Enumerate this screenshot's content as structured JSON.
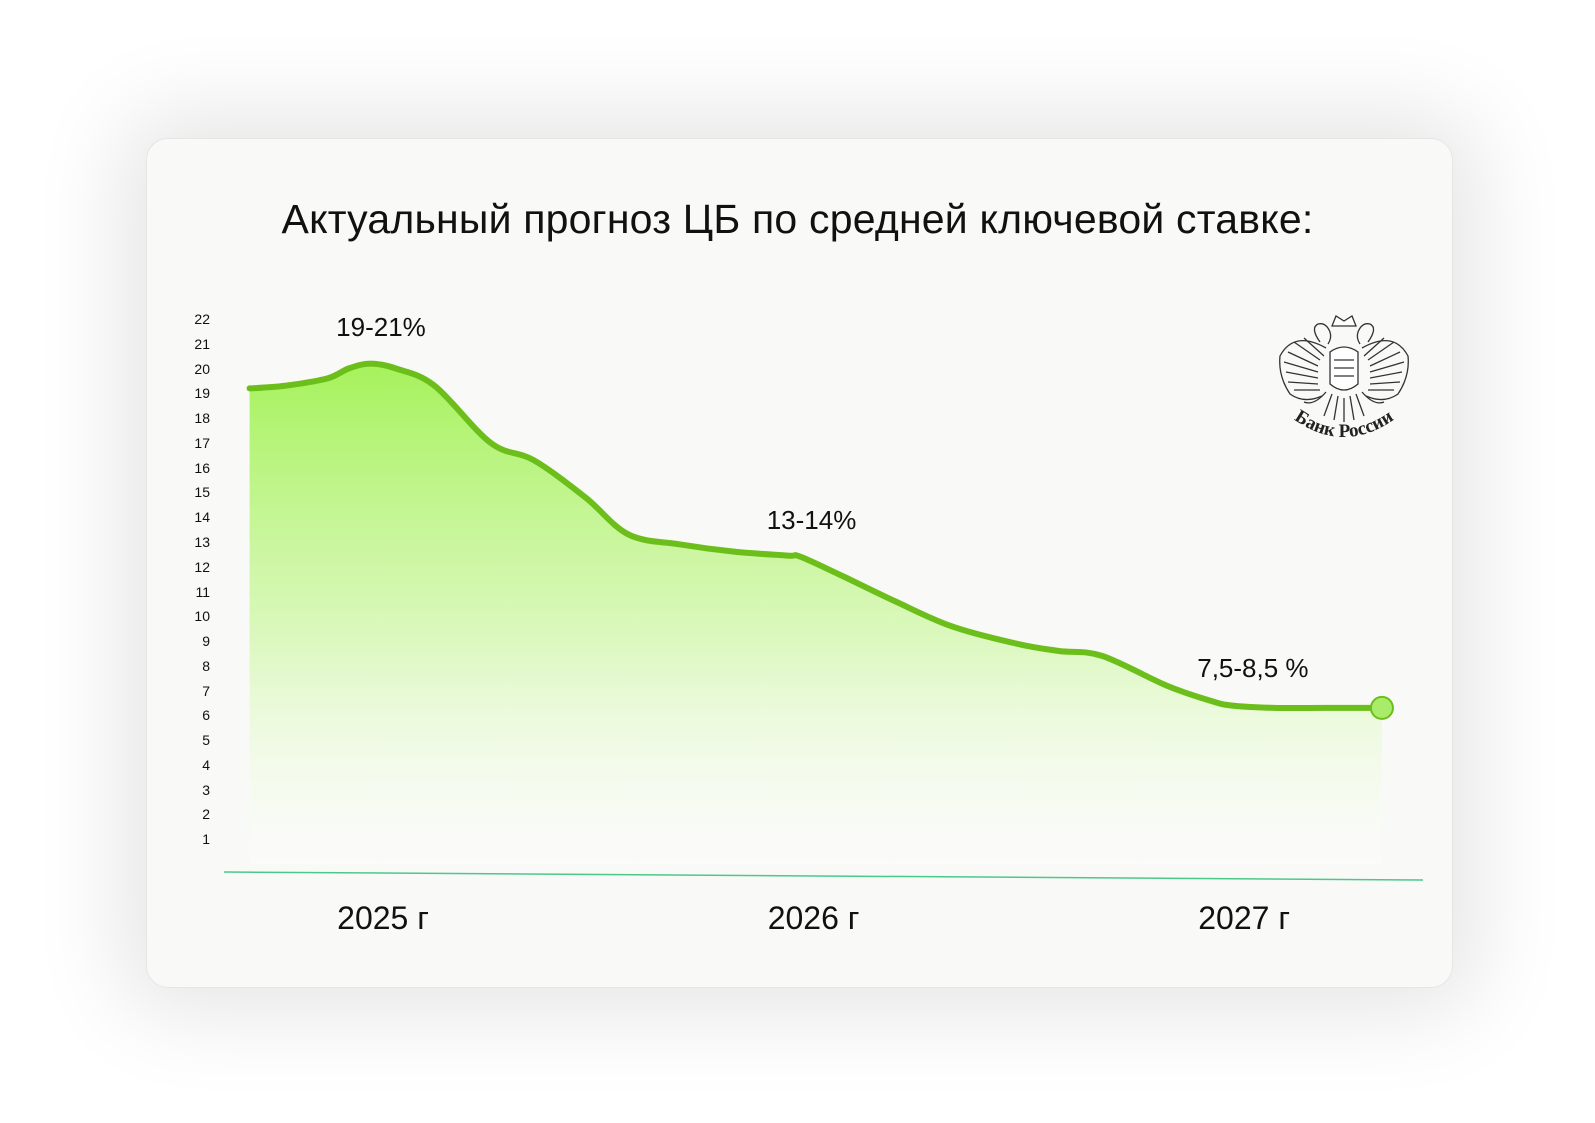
{
  "title": "Актуальный прогноз ЦБ по средней ключевой ставке:",
  "logo": {
    "text": "Банк России",
    "icon": "double-headed-eagle-emblem"
  },
  "colors": {
    "line": "#6cbf1a",
    "fill_top": "#a6f25c",
    "fill_bottom": "#ffffff",
    "axis": "#4cc98a",
    "marker": "#a8ec6a"
  },
  "chart_data": {
    "type": "area",
    "title": "Актуальный прогноз ЦБ по средней ключевой ставке:",
    "xlabel": "",
    "ylabel": "",
    "ylim": [
      0,
      22
    ],
    "yticks": [
      "22",
      "21",
      "20",
      "19",
      "18",
      "17",
      "16",
      "15",
      "14",
      "13",
      "12",
      "11",
      "10",
      "9",
      "8",
      "7",
      "6",
      "5",
      "4",
      "3",
      "2",
      "1"
    ],
    "xlim": [
      2024.7,
      2027.45
    ],
    "xticks": [
      {
        "x": 2025.0,
        "label": "2025 г"
      },
      {
        "x": 2026.0,
        "label": "2026 г"
      },
      {
        "x": 2027.0,
        "label": "2027 г"
      }
    ],
    "series": [
      {
        "values": [
          [
            2024.72,
            19.2
          ],
          [
            2024.8,
            19.3
          ],
          [
            2024.9,
            19.6
          ],
          [
            2024.95,
            20.0
          ],
          [
            2025.0,
            20.2
          ],
          [
            2025.06,
            20.0
          ],
          [
            2025.15,
            19.3
          ],
          [
            2025.28,
            17.0
          ],
          [
            2025.38,
            16.3
          ],
          [
            2025.5,
            14.8
          ],
          [
            2025.6,
            13.3
          ],
          [
            2025.72,
            12.9
          ],
          [
            2025.85,
            12.6
          ],
          [
            2025.97,
            12.45
          ],
          [
            2026.0,
            12.4
          ],
          [
            2026.1,
            11.6
          ],
          [
            2026.22,
            10.6
          ],
          [
            2026.35,
            9.6
          ],
          [
            2026.5,
            8.9
          ],
          [
            2026.6,
            8.6
          ],
          [
            2026.7,
            8.4
          ],
          [
            2026.85,
            7.2
          ],
          [
            2026.95,
            6.6
          ],
          [
            2027.0,
            6.4
          ],
          [
            2027.1,
            6.3
          ],
          [
            2027.22,
            6.3
          ],
          [
            2027.35,
            6.3
          ]
        ]
      }
    ],
    "annotations": [
      {
        "x": 2025.0,
        "y": 20.2,
        "text": "19-21%"
      },
      {
        "x": 2026.0,
        "y": 12.4,
        "text": "13-14%"
      },
      {
        "x": 2027.0,
        "y": 6.4,
        "text": "7,5-8,5 %"
      }
    ],
    "grid": false,
    "legend": "none"
  }
}
